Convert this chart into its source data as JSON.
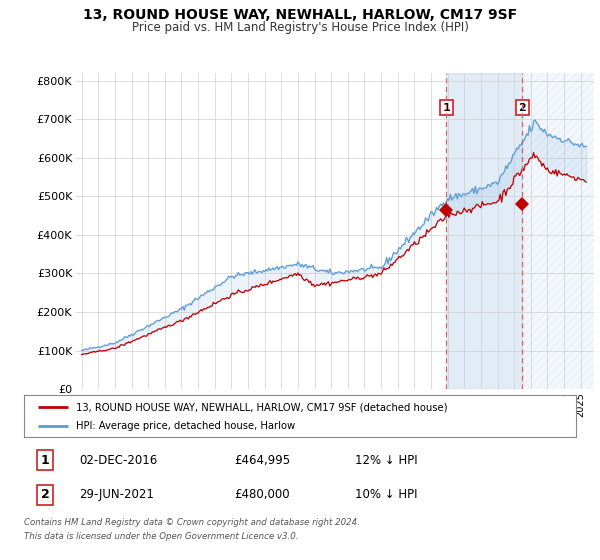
{
  "title": "13, ROUND HOUSE WAY, NEWHALL, HARLOW, CM17 9SF",
  "subtitle": "Price paid vs. HM Land Registry's House Price Index (HPI)",
  "ylim": [
    0,
    820000
  ],
  "yticks": [
    0,
    100000,
    200000,
    300000,
    400000,
    500000,
    600000,
    700000,
    800000
  ],
  "ytick_labels": [
    "£0",
    "£100K",
    "£200K",
    "£300K",
    "£400K",
    "£500K",
    "£600K",
    "£700K",
    "£800K"
  ],
  "hpi_color": "#5b9bd5",
  "price_color": "#c00000",
  "fill_between_color": "#ddeeff",
  "fill_right_hatch_color": "#ddeeff",
  "dashed_line_color": "#e06060",
  "background_color": "#ffffff",
  "grid_color": "#d0d0d0",
  "legend_label_price": "13, ROUND HOUSE WAY, NEWHALL, HARLOW, CM17 9SF (detached house)",
  "legend_label_hpi": "HPI: Average price, detached house, Harlow",
  "annotation_1_date": "02-DEC-2016",
  "annotation_1_price": "£464,995",
  "annotation_1_hpi": "12% ↓ HPI",
  "annotation_2_date": "29-JUN-2021",
  "annotation_2_price": "£480,000",
  "annotation_2_hpi": "10% ↓ HPI",
  "footer_line1": "Contains HM Land Registry data © Crown copyright and database right 2024.",
  "footer_line2": "This data is licensed under the Open Government Licence v3.0.",
  "sale_1_year": 2016.92,
  "sale_1_price": 464995,
  "sale_2_year": 2021.5,
  "sale_2_price": 480000,
  "xlim_start": 1994.6,
  "xlim_end": 2025.8
}
